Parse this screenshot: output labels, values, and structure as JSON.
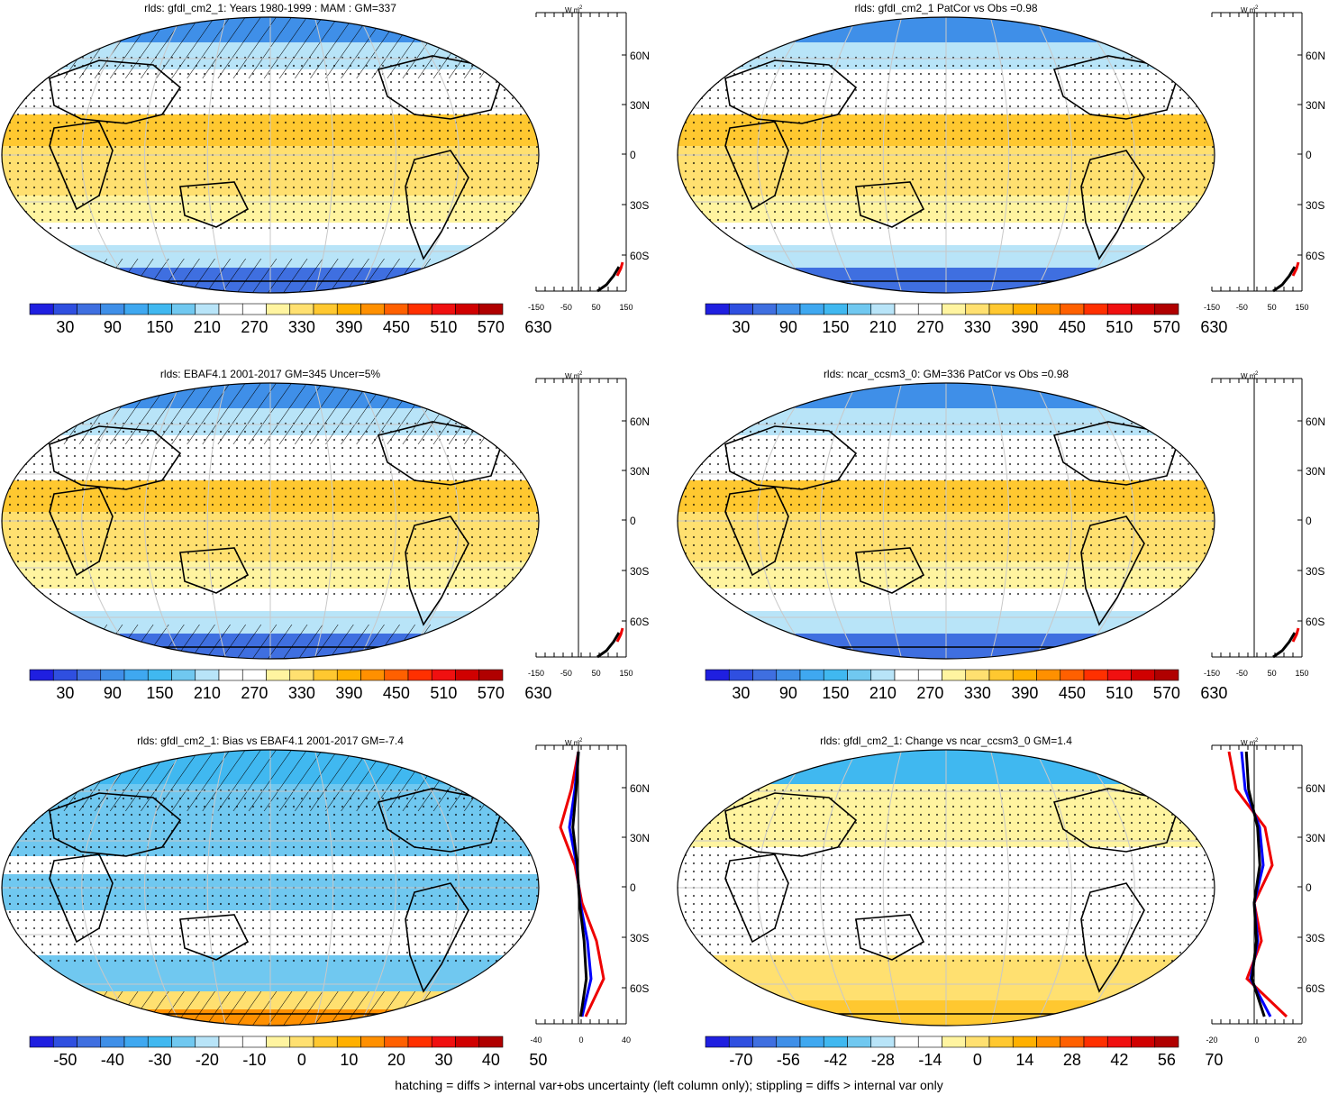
{
  "footnote": "hatching = diffs > internal var+obs uncertainty (left column only); stippling = diffs > internal var only",
  "units": "W m",
  "units_exp": "-2",
  "lat_labels": [
    "60N",
    "30N",
    "0",
    "30S",
    "60S"
  ],
  "colorbars": {
    "abs": [
      "30",
      "90",
      "150",
      "210",
      "270",
      "330",
      "390",
      "450",
      "510",
      "570",
      "630"
    ],
    "bias": [
      "-50",
      "-40",
      "-30",
      "-20",
      "-10",
      "0",
      "10",
      "20",
      "30",
      "40",
      "50"
    ],
    "change": [
      "-70",
      "-56",
      "-42",
      "-28",
      "-14",
      "0",
      "14",
      "28",
      "42",
      "56",
      "70"
    ]
  },
  "panels": [
    {
      "title": "rlds: gfdl_cm2_1: Years 1980-1999 : MAM : GM=337",
      "type": "abs",
      "profile_ticks": [
        "-150",
        "-50",
        "50",
        "150"
      ]
    },
    {
      "title": "rlds: gfdl_cm2_1 PatCor vs Obs =0.98",
      "type": "abs",
      "profile_ticks": [
        "-150",
        "-50",
        "50",
        "150"
      ]
    },
    {
      "title": "rlds: EBAF4.1 2001-2017 GM=345 Uncer=5%",
      "type": "abs",
      "profile_ticks": [
        "-150",
        "-50",
        "50",
        "150"
      ]
    },
    {
      "title": "rlds: ncar_ccsm3_0: GM=336 PatCor vs Obs =0.98",
      "type": "abs",
      "profile_ticks": [
        "-150",
        "-50",
        "50",
        "150"
      ]
    },
    {
      "title": "rlds: gfdl_cm2_1: Bias vs EBAF4.1 2001-2017 GM=-7.4",
      "type": "bias",
      "profile_ticks": [
        "-40",
        "0",
        "40"
      ]
    },
    {
      "title": "rlds: gfdl_cm2_1: Change vs ncar_ccsm3_0 GM=1.4",
      "type": "change",
      "profile_ticks": [
        "-20",
        "0",
        "20"
      ]
    }
  ],
  "colors": {
    "scale": [
      "#1f1fe0",
      "#2f4fe0",
      "#3f6fe0",
      "#3f8fe8",
      "#3fa8f0",
      "#40b8f0",
      "#70c8f0",
      "#b8e4f8",
      "#ffffff",
      "#ffffff",
      "#fff4a0",
      "#ffe070",
      "#ffc830",
      "#ffb000",
      "#ff9000",
      "#ff6000",
      "#ff3000",
      "#f01010",
      "#d00000",
      "#b00000"
    ]
  }
}
